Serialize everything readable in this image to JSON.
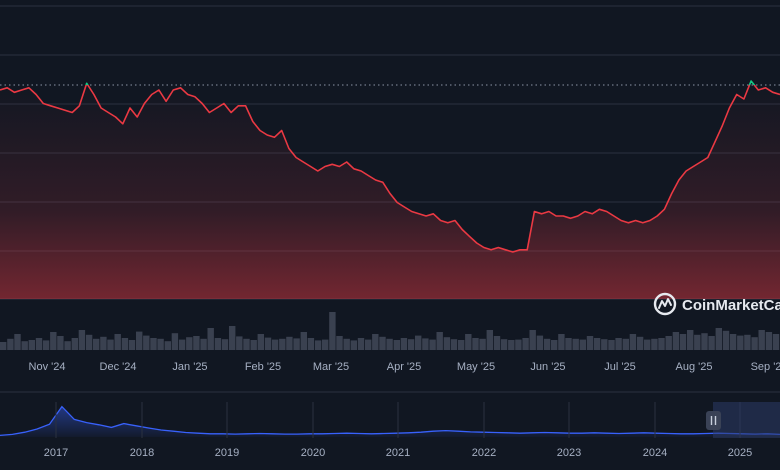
{
  "chart_data": {
    "type": "line",
    "title": "",
    "xlabel": "",
    "ylabel": "",
    "grid": true,
    "x_ticks": [
      "Nov '24",
      "Dec '24",
      "Jan '25",
      "Feb '25",
      "Mar '25",
      "Apr '25",
      "May '25",
      "Jun '25",
      "Jul '25",
      "Aug '25",
      "Sep '2"
    ],
    "baseline_value": 0.822,
    "series": [
      {
        "values": [
          0.8,
          0.81,
          0.79,
          0.8,
          0.81,
          0.78,
          0.74,
          0.73,
          0.72,
          0.71,
          0.7,
          0.73,
          0.83,
          0.78,
          0.72,
          0.7,
          0.68,
          0.65,
          0.72,
          0.68,
          0.74,
          0.78,
          0.8,
          0.75,
          0.8,
          0.81,
          0.78,
          0.77,
          0.74,
          0.7,
          0.72,
          0.74,
          0.7,
          0.73,
          0.73,
          0.66,
          0.62,
          0.6,
          0.59,
          0.62,
          0.54,
          0.5,
          0.48,
          0.46,
          0.44,
          0.46,
          0.47,
          0.46,
          0.48,
          0.45,
          0.44,
          0.42,
          0.4,
          0.39,
          0.34,
          0.3,
          0.28,
          0.26,
          0.25,
          0.24,
          0.25,
          0.22,
          0.21,
          0.22,
          0.18,
          0.15,
          0.12,
          0.1,
          0.09,
          0.1,
          0.09,
          0.08,
          0.09,
          0.09,
          0.26,
          0.25,
          0.26,
          0.24,
          0.24,
          0.23,
          0.24,
          0.26,
          0.25,
          0.27,
          0.26,
          0.24,
          0.22,
          0.21,
          0.22,
          0.21,
          0.22,
          0.24,
          0.27,
          0.34,
          0.4,
          0.44,
          0.46,
          0.48,
          0.5,
          0.57,
          0.64,
          0.72,
          0.78,
          0.76,
          0.84,
          0.8,
          0.81,
          0.79,
          0.78
        ]
      }
    ],
    "volume": [
      0.2,
      0.28,
      0.4,
      0.22,
      0.25,
      0.3,
      0.24,
      0.45,
      0.35,
      0.22,
      0.3,
      0.5,
      0.38,
      0.28,
      0.33,
      0.26,
      0.4,
      0.3,
      0.25,
      0.46,
      0.36,
      0.3,
      0.28,
      0.22,
      0.42,
      0.26,
      0.32,
      0.35,
      0.28,
      0.55,
      0.3,
      0.27,
      0.6,
      0.34,
      0.28,
      0.25,
      0.4,
      0.31,
      0.26,
      0.28,
      0.33,
      0.29,
      0.45,
      0.3,
      0.24,
      0.26,
      0.95,
      0.35,
      0.28,
      0.24,
      0.3,
      0.26,
      0.4,
      0.33,
      0.28,
      0.25,
      0.3,
      0.27,
      0.36,
      0.29,
      0.26,
      0.45,
      0.32,
      0.27,
      0.25,
      0.4,
      0.3,
      0.28,
      0.5,
      0.35,
      0.27,
      0.25,
      0.26,
      0.3,
      0.5,
      0.36,
      0.28,
      0.25,
      0.4,
      0.3,
      0.28,
      0.26,
      0.35,
      0.3,
      0.27,
      0.25,
      0.3,
      0.28,
      0.4,
      0.33,
      0.26,
      0.28,
      0.3,
      0.35,
      0.45,
      0.4,
      0.5,
      0.38,
      0.42,
      0.35,
      0.55,
      0.48,
      0.4,
      0.36,
      0.38,
      0.32,
      0.5,
      0.45,
      0.4
    ],
    "navigator": {
      "x_ticks": [
        "2017",
        "2018",
        "2019",
        "2020",
        "2021",
        "2022",
        "2023",
        "2024",
        "2025"
      ],
      "values": [
        0.05,
        0.08,
        0.15,
        0.25,
        0.4,
        0.95,
        0.55,
        0.45,
        0.38,
        0.3,
        0.42,
        0.35,
        0.28,
        0.22,
        0.18,
        0.14,
        0.12,
        0.1,
        0.1,
        0.09,
        0.1,
        0.11,
        0.1,
        0.09,
        0.09,
        0.1,
        0.1,
        0.11,
        0.12,
        0.11,
        0.1,
        0.11,
        0.12,
        0.13,
        0.15,
        0.18,
        0.2,
        0.18,
        0.16,
        0.15,
        0.14,
        0.13,
        0.12,
        0.13,
        0.14,
        0.13,
        0.12,
        0.12,
        0.13,
        0.12,
        0.11,
        0.12,
        0.13,
        0.12,
        0.11,
        0.1,
        0.1,
        0.11,
        0.12,
        0.11,
        0.1,
        0.09,
        0.1,
        0.08
      ]
    }
  },
  "watermark": {
    "text": "CoinMarketCap",
    "icon": "coinmarketcap-logo-icon"
  },
  "navigator_handle": {
    "icon": "pause-icon"
  },
  "colors": {
    "background": "#111722",
    "line_below": "#ea3943",
    "line_above": "#16c784",
    "area_top": "#ea3943",
    "navigator_line": "#3861fb",
    "grid": "#2a3140"
  }
}
